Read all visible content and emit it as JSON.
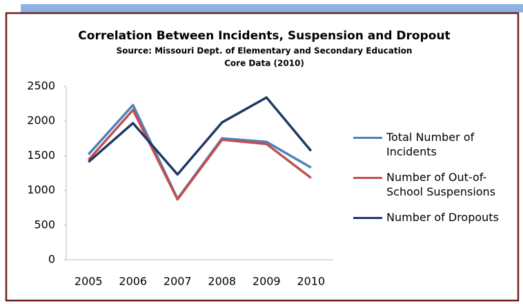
{
  "chart_data": {
    "type": "line",
    "title": "Correlation Between Incidents, Suspension and Dropout",
    "subtitle": "Source: Missouri Dept. of Elementary and Secondary Education",
    "subtitle2": "Core Data (2010)",
    "categories": [
      "2005",
      "2006",
      "2007",
      "2008",
      "2009",
      "2010"
    ],
    "series": [
      {
        "name": "Total Number of Incidents",
        "color": "#4f81bd",
        "values": [
          1520,
          2230,
          880,
          1750,
          1700,
          1330
        ]
      },
      {
        "name": "Number of Out-of-School Suspensions",
        "color": "#c0504d",
        "values": [
          1440,
          2160,
          870,
          1730,
          1670,
          1180
        ]
      },
      {
        "name": "Number of Dropouts",
        "color": "#1f3864",
        "values": [
          1410,
          1970,
          1230,
          1980,
          2340,
          1570
        ]
      }
    ],
    "ylim": [
      0,
      2500
    ],
    "yticks": [
      0,
      500,
      1000,
      1500,
      2000,
      2500
    ],
    "grid": false,
    "legend": "right"
  }
}
